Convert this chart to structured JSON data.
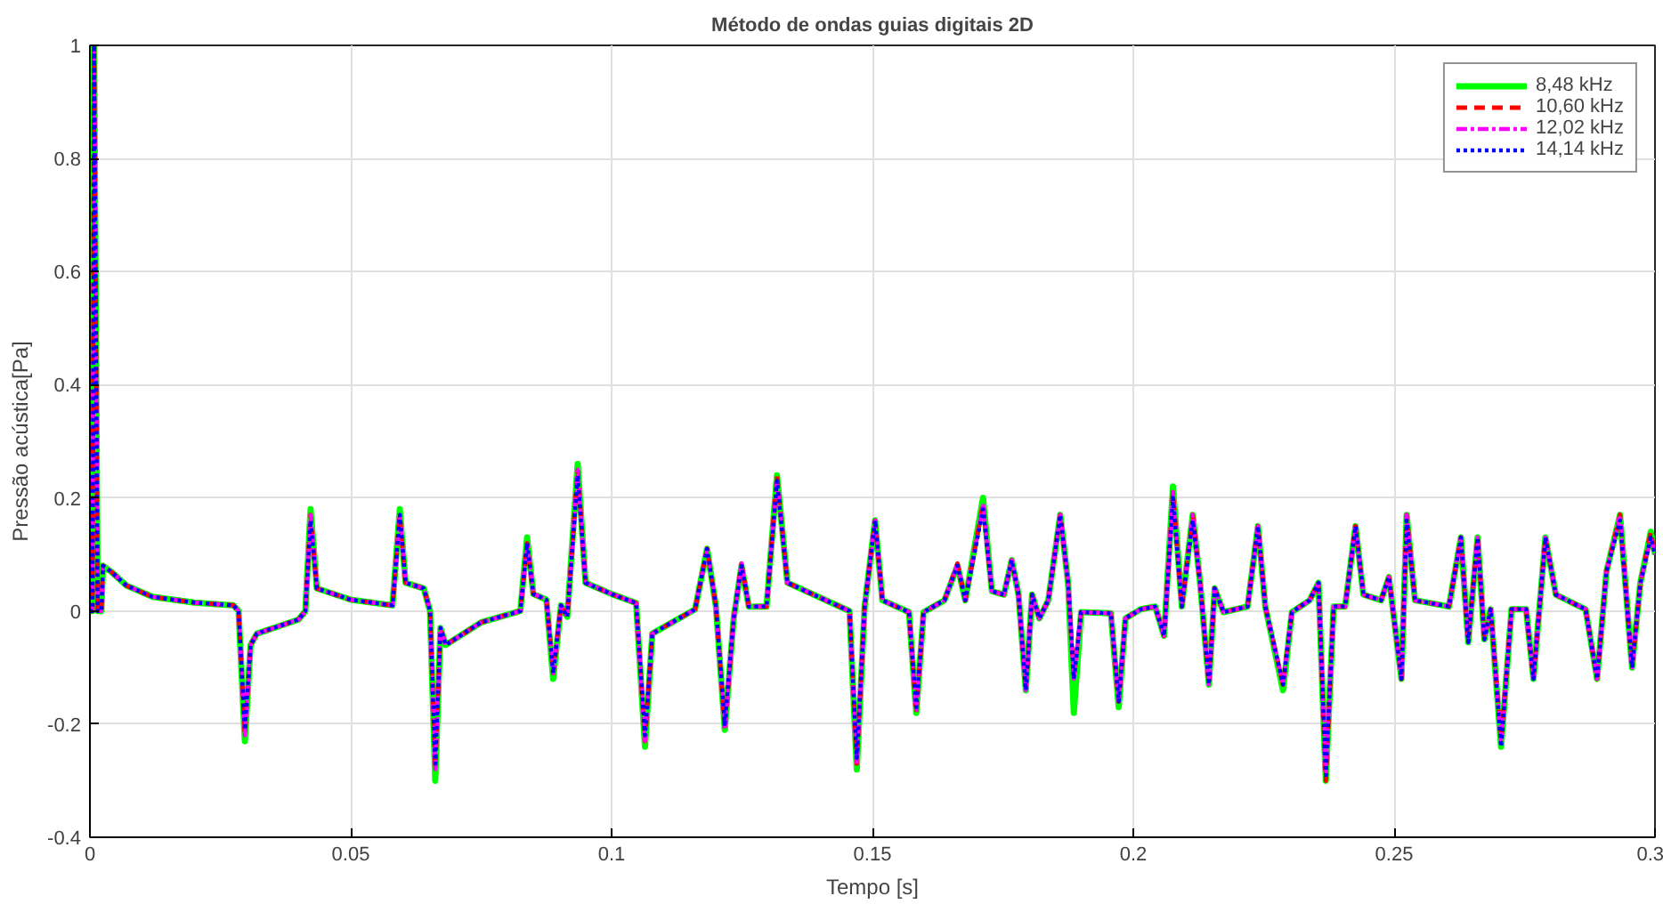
{
  "chart_data": {
    "type": "line",
    "title": "Método de ondas guias digitais 2D",
    "xlabel": "Tempo [s]",
    "ylabel": "Pressão acústica[Pa]",
    "xlim": [
      0,
      0.3
    ],
    "ylim": [
      -0.4,
      1
    ],
    "xticks": [
      0,
      0.05,
      0.1,
      0.15,
      0.2,
      0.25,
      0.3
    ],
    "yticks": [
      -0.4,
      -0.2,
      0,
      0.2,
      0.4,
      0.6,
      0.8,
      1
    ],
    "grid": true,
    "legend": "top right",
    "x": [
      0,
      0.0005,
      0.0008,
      0.0015,
      0.0022,
      0.0025,
      0.004,
      0.007,
      0.012,
      0.02,
      0.0275,
      0.0285,
      0.0297,
      0.0308,
      0.032,
      0.04,
      0.0413,
      0.0423,
      0.0435,
      0.05,
      0.058,
      0.0594,
      0.0605,
      0.064,
      0.0652,
      0.0662,
      0.0672,
      0.0682,
      0.075,
      0.0825,
      0.0838,
      0.085,
      0.0875,
      0.0888,
      0.0903,
      0.0915,
      0.0935,
      0.095,
      0.1,
      0.1047,
      0.1064,
      0.1078,
      0.116,
      0.1183,
      0.12,
      0.1217,
      0.1234,
      0.1249,
      0.1263,
      0.1297,
      0.1317,
      0.1337,
      0.1456,
      0.147,
      0.1485,
      0.1505,
      0.1519,
      0.157,
      0.1584,
      0.1598,
      0.1638,
      0.1663,
      0.1678,
      0.1712,
      0.1729,
      0.1752,
      0.1767,
      0.178,
      0.1794,
      0.1806,
      0.182,
      0.1837,
      0.186,
      0.1875,
      0.1886,
      0.19,
      0.1957,
      0.1972,
      0.1985,
      0.2014,
      0.2042,
      0.2059,
      0.2076,
      0.2093,
      0.2114,
      0.2128,
      0.2145,
      0.2156,
      0.2173,
      0.2219,
      0.2239,
      0.2253,
      0.2287,
      0.2304,
      0.2338,
      0.2355,
      0.2369,
      0.2384,
      0.2406,
      0.2426,
      0.2441,
      0.2475,
      0.249,
      0.2514,
      0.2524,
      0.254,
      0.2605,
      0.2628,
      0.2642,
      0.266,
      0.2673,
      0.2685,
      0.2705,
      0.2725,
      0.2753,
      0.2767,
      0.279,
      0.281,
      0.2867,
      0.2889,
      0.2907,
      0.2933,
      0.2956,
      0.2972,
      0.2992,
      0.3
    ],
    "series": [
      {
        "name": "8,48 kHz",
        "color": "#00ff00",
        "line_style": "solid",
        "values": [
          0,
          0,
          1.0,
          0,
          0,
          0.08,
          0.07,
          0.045,
          0.025,
          0.015,
          0.01,
          0,
          -0.23,
          -0.06,
          -0.04,
          -0.015,
          0,
          0.18,
          0.04,
          0.02,
          0.01,
          0.18,
          0.05,
          0.04,
          0,
          -0.3,
          -0.03,
          -0.06,
          -0.02,
          0,
          0.13,
          0.03,
          0.02,
          -0.12,
          0.01,
          -0.01,
          0.26,
          0.05,
          0.03,
          0.014,
          -0.24,
          -0.04,
          0.003,
          0.11,
          0.008,
          -0.21,
          -0.013,
          0.08,
          0.008,
          0.008,
          0.24,
          0.05,
          0,
          -0.28,
          0.008,
          0.16,
          0.019,
          -0.002,
          -0.18,
          -0.002,
          0.019,
          0.08,
          0.019,
          0.2,
          0.035,
          0.029,
          0.09,
          0.029,
          -0.14,
          0.029,
          -0.013,
          0.019,
          0.17,
          0.05,
          -0.18,
          -0.002,
          -0.004,
          -0.17,
          -0.013,
          0.003,
          0.008,
          -0.044,
          0.22,
          0.008,
          0.17,
          0.05,
          -0.13,
          0.04,
          -0.002,
          0.008,
          0.15,
          0.008,
          -0.14,
          -0.002,
          0.019,
          0.05,
          -0.3,
          0.008,
          0.008,
          0.15,
          0.029,
          0.019,
          0.06,
          -0.12,
          0.17,
          0.019,
          0.008,
          0.13,
          -0.055,
          0.13,
          -0.05,
          0.003,
          -0.24,
          0.003,
          0.003,
          -0.12,
          0.13,
          0.029,
          0.003,
          -0.12,
          0.07,
          0.17,
          -0.1,
          0.05,
          0.14,
          0.1
        ]
      },
      {
        "name": "10,60 kHz",
        "color": "#ff0000",
        "line_style": "dashed",
        "values": [
          0,
          0,
          1.0,
          0,
          0,
          0.08,
          0.07,
          0.045,
          0.025,
          0.015,
          0.01,
          0,
          -0.22,
          -0.06,
          -0.04,
          -0.015,
          0,
          0.17,
          0.04,
          0.02,
          0.01,
          0.17,
          0.05,
          0.04,
          0,
          -0.28,
          -0.03,
          -0.06,
          -0.02,
          0,
          0.12,
          0.03,
          0.02,
          -0.11,
          0.01,
          -0.01,
          0.25,
          0.05,
          0.03,
          0.014,
          -0.23,
          -0.04,
          0.003,
          0.11,
          0.008,
          -0.21,
          -0.013,
          0.084,
          0.008,
          0.008,
          0.24,
          0.05,
          0,
          -0.27,
          0.008,
          0.16,
          0.019,
          -0.002,
          -0.18,
          -0.002,
          0.019,
          0.084,
          0.019,
          0.19,
          0.035,
          0.029,
          0.09,
          0.029,
          -0.14,
          0.029,
          -0.013,
          0.019,
          0.17,
          0.05,
          -0.12,
          -0.002,
          -0.004,
          -0.16,
          -0.013,
          0.003,
          0.008,
          -0.044,
          0.21,
          0.008,
          0.17,
          0.05,
          -0.13,
          0.04,
          -0.002,
          0.008,
          0.15,
          0.008,
          -0.13,
          -0.002,
          0.019,
          0.05,
          -0.3,
          0.008,
          0.008,
          0.15,
          0.029,
          0.019,
          0.06,
          -0.12,
          0.17,
          0.019,
          0.008,
          0.13,
          -0.055,
          0.13,
          -0.05,
          0.003,
          -0.23,
          0.003,
          0.003,
          -0.12,
          0.13,
          0.029,
          0.003,
          -0.12,
          0.07,
          0.17,
          -0.1,
          0.05,
          0.14,
          0.1
        ]
      },
      {
        "name": "12,02 kHz",
        "color": "#ff00ff",
        "line_style": "dashdot",
        "values": [
          0,
          0,
          1.0,
          0,
          0,
          0.08,
          0.07,
          0.045,
          0.025,
          0.015,
          0.01,
          0,
          -0.22,
          -0.06,
          -0.04,
          -0.015,
          0,
          0.17,
          0.04,
          0.02,
          0.01,
          0.17,
          0.05,
          0.04,
          0,
          -0.28,
          -0.03,
          -0.06,
          -0.02,
          0,
          0.12,
          0.03,
          0.02,
          -0.11,
          0.01,
          -0.01,
          0.25,
          0.05,
          0.03,
          0.014,
          -0.23,
          -0.04,
          0.003,
          0.11,
          0.008,
          -0.21,
          -0.013,
          0.084,
          0.008,
          0.008,
          0.23,
          0.05,
          0,
          -0.27,
          0.008,
          0.16,
          0.019,
          -0.002,
          -0.18,
          -0.002,
          0.019,
          0.084,
          0.019,
          0.19,
          0.035,
          0.029,
          0.09,
          0.029,
          -0.14,
          0.029,
          -0.013,
          0.019,
          0.17,
          0.05,
          -0.12,
          -0.002,
          -0.004,
          -0.16,
          -0.013,
          0.003,
          0.008,
          -0.044,
          0.21,
          0.008,
          0.17,
          0.05,
          -0.13,
          0.04,
          -0.002,
          0.008,
          0.15,
          0.008,
          -0.13,
          -0.002,
          0.019,
          0.05,
          -0.29,
          0.008,
          0.008,
          0.15,
          0.029,
          0.019,
          0.06,
          -0.12,
          0.17,
          0.019,
          0.008,
          0.13,
          -0.055,
          0.13,
          -0.05,
          0.003,
          -0.23,
          0.003,
          0.003,
          -0.12,
          0.13,
          0.029,
          0.003,
          -0.12,
          0.07,
          0.17,
          -0.1,
          0.05,
          0.13,
          0.1
        ]
      },
      {
        "name": "14,14 kHz",
        "color": "#0000ff",
        "line_style": "dotted",
        "values": [
          0,
          0,
          1.0,
          0,
          0,
          0.08,
          0.07,
          0.045,
          0.025,
          0.015,
          0.01,
          0,
          -0.21,
          -0.06,
          -0.04,
          -0.015,
          0,
          0.16,
          0.04,
          0.02,
          0.01,
          0.17,
          0.05,
          0.04,
          0,
          -0.27,
          -0.03,
          -0.06,
          -0.02,
          0,
          0.12,
          0.03,
          0.02,
          -0.11,
          0.01,
          -0.01,
          0.24,
          0.05,
          0.03,
          0.014,
          -0.22,
          -0.04,
          0.003,
          0.11,
          0.008,
          -0.2,
          -0.013,
          0.08,
          0.008,
          0.008,
          0.23,
          0.05,
          0,
          -0.26,
          0.008,
          0.16,
          0.019,
          -0.002,
          -0.17,
          -0.002,
          0.019,
          0.08,
          0.019,
          0.18,
          0.035,
          0.029,
          0.09,
          0.029,
          -0.14,
          0.029,
          -0.013,
          0.019,
          0.17,
          0.05,
          -0.12,
          -0.002,
          -0.004,
          -0.16,
          -0.013,
          0.003,
          0.008,
          -0.044,
          0.2,
          0.008,
          0.16,
          0.05,
          -0.13,
          0.04,
          -0.002,
          0.008,
          0.15,
          0.008,
          -0.13,
          -0.002,
          0.019,
          0.05,
          -0.29,
          0.008,
          0.008,
          0.15,
          0.029,
          0.019,
          0.06,
          -0.12,
          0.16,
          0.019,
          0.008,
          0.13,
          -0.055,
          0.13,
          -0.05,
          0.003,
          -0.24,
          0.003,
          0.003,
          -0.12,
          0.13,
          0.029,
          0.003,
          -0.12,
          0.07,
          0.16,
          -0.1,
          0.05,
          0.13,
          0.1
        ]
      }
    ]
  }
}
